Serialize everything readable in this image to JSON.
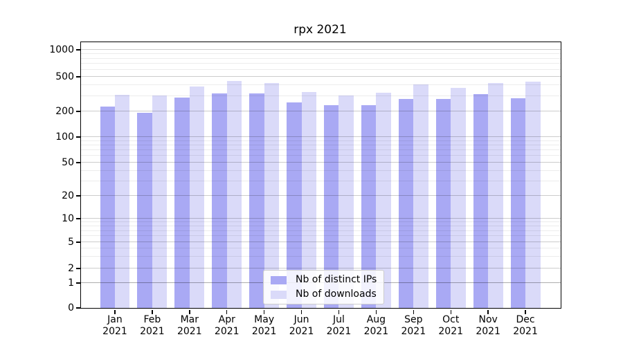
{
  "chart_data": {
    "type": "bar",
    "title": "rpx 2021",
    "categories": [
      "Jan 2021",
      "Feb 2021",
      "Mar 2021",
      "Apr 2021",
      "May 2021",
      "Jun 2021",
      "Jul 2021",
      "Aug 2021",
      "Sep 2021",
      "Oct 2021",
      "Nov 2021",
      "Dec 2021"
    ],
    "x_axis": {
      "months": [
        "Jan",
        "Feb",
        "Mar",
        "Apr",
        "May",
        "Jun",
        "Jul",
        "Aug",
        "Sep",
        "Oct",
        "Nov",
        "Dec"
      ],
      "year": "2021",
      "first_center_frac": 0.0707,
      "step_frac": 0.0778,
      "bar_width_frac": 0.031
    },
    "y_axis": {
      "scale": "symlog",
      "ylim": [
        0,
        1200
      ],
      "ticks": [
        0,
        1,
        2,
        5,
        10,
        20,
        50,
        100,
        200,
        500,
        1000
      ],
      "minor_ticks": [
        3,
        4,
        6,
        7,
        8,
        9,
        30,
        40,
        60,
        70,
        80,
        90,
        300,
        400,
        600,
        700,
        800,
        900
      ],
      "anchors": [
        [
          0,
          0
        ],
        [
          1,
          0.094
        ],
        [
          2,
          0.1484
        ],
        [
          5,
          0.2474
        ],
        [
          10,
          0.3359
        ],
        [
          20,
          0.4219
        ],
        [
          50,
          0.5469
        ],
        [
          100,
          0.6432
        ],
        [
          200,
          0.7396
        ],
        [
          500,
          0.8698
        ],
        [
          1000,
          0.9714
        ]
      ]
    },
    "series": [
      {
        "key": "distinct-ips",
        "name": "Nb of distinct IPs",
        "color": "#a9a9f4",
        "values": [
          229,
          194,
          288,
          320,
          322,
          252,
          237,
          236,
          278,
          279,
          316,
          285
        ]
      },
      {
        "key": "downloads",
        "name": "Nb of downloads",
        "color": "#dadaf9",
        "values": [
          312,
          303,
          385,
          448,
          423,
          334,
          303,
          330,
          409,
          373,
          423,
          440
        ]
      }
    ],
    "legend_position": "lower center",
    "grid": true
  },
  "colors": {
    "background": "#ffffff",
    "spine": "#000000",
    "major_grid": "rgba(0,0,0,0.20)",
    "minor_grid": "rgba(0,0,0,0.075)",
    "unit_grid": "rgba(0,0,0,0.32)",
    "legend_border": "#cccccc"
  }
}
